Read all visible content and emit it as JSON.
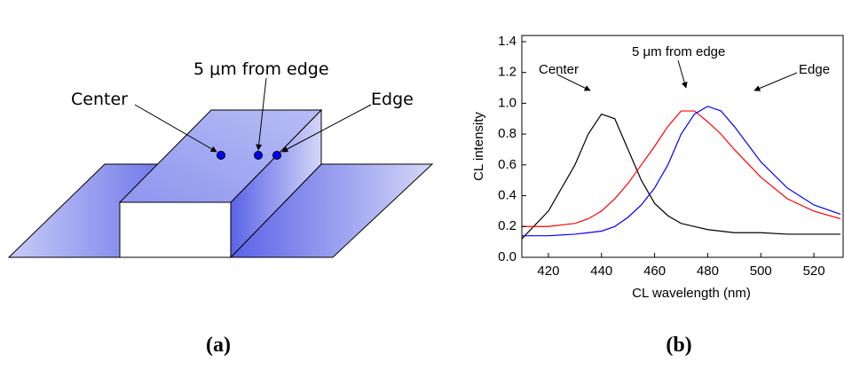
{
  "diagram": {
    "labels": [
      "Center",
      "5 μm from edge",
      "Edge"
    ]
  },
  "panel_labels": [
    "(a)",
    "(b)"
  ],
  "chart_data": {
    "type": "line",
    "x_label": "CL wavelength (nm)",
    "y_label": "CL intensity",
    "x": [
      410,
      420,
      430,
      435,
      440,
      445,
      450,
      455,
      460,
      465,
      470,
      475,
      480,
      485,
      490,
      500,
      510,
      520,
      530
    ],
    "series": [
      {
        "color": "#000000",
        "values": [
          0.12,
          0.3,
          0.6,
          0.8,
          0.93,
          0.9,
          0.7,
          0.5,
          0.35,
          0.27,
          0.22,
          0.2,
          0.18,
          0.17,
          0.16,
          0.16,
          0.15,
          0.15,
          0.15
        ]
      },
      {
        "color": "#ff0000",
        "values": [
          0.2,
          0.2,
          0.22,
          0.25,
          0.3,
          0.38,
          0.48,
          0.6,
          0.72,
          0.85,
          0.95,
          0.95,
          0.88,
          0.8,
          0.7,
          0.52,
          0.38,
          0.3,
          0.25
        ]
      },
      {
        "color": "#0000ff",
        "values": [
          0.14,
          0.14,
          0.15,
          0.16,
          0.17,
          0.2,
          0.26,
          0.34,
          0.45,
          0.6,
          0.8,
          0.93,
          0.98,
          0.95,
          0.85,
          0.62,
          0.45,
          0.34,
          0.28
        ]
      }
    ],
    "annotations": [
      "Center",
      "5 μm from edge",
      "Edge"
    ],
    "xlim": [
      410,
      531
    ],
    "ylim": [
      0,
      1.44
    ],
    "xticks": [
      420,
      440,
      460,
      480,
      500,
      520
    ],
    "yticks": [
      {
        "value": 0,
        "label": "0.0"
      },
      0.2,
      0.4,
      0.6,
      0.8,
      {
        "value": 1,
        "label": "1.0"
      },
      1.2,
      1.4
    ]
  }
}
